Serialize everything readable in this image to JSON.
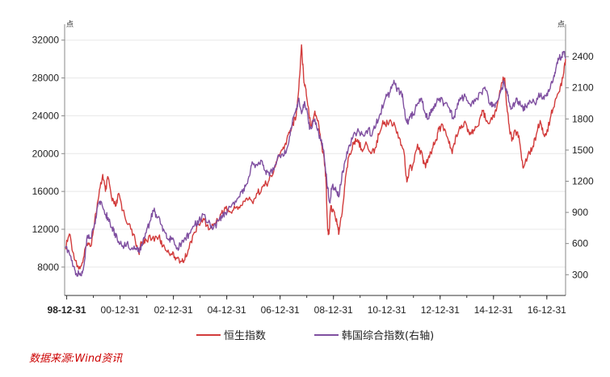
{
  "chart_data": {
    "type": "line",
    "title": "",
    "left_unit": "点",
    "right_unit": "点",
    "x_ticks": [
      "98-12-31",
      "00-12-31",
      "02-12-31",
      "04-12-31",
      "06-12-31",
      "08-12-31",
      "10-12-31",
      "12-12-31",
      "14-12-31",
      "16-12-31"
    ],
    "x_range": [
      1998.92,
      2017.7
    ],
    "y_left": {
      "ticks": [
        8000,
        12000,
        16000,
        20000,
        24000,
        28000,
        32000
      ],
      "lim": [
        5000,
        33000
      ]
    },
    "y_right": {
      "ticks": [
        300,
        600,
        900,
        1200,
        1500,
        1800,
        2100,
        2400
      ],
      "lim": [
        100,
        2650
      ]
    },
    "series": [
      {
        "name": "恒生指数",
        "axis": "left",
        "color": "#d23b3b",
        "points": [
          [
            1998.95,
            10000
          ],
          [
            1999.1,
            11500
          ],
          [
            1999.25,
            9500
          ],
          [
            1999.45,
            7800
          ],
          [
            1999.6,
            8500
          ],
          [
            1999.75,
            10500
          ],
          [
            1999.9,
            10200
          ],
          [
            2000.05,
            13000
          ],
          [
            2000.2,
            15500
          ],
          [
            2000.35,
            17800
          ],
          [
            2000.45,
            16000
          ],
          [
            2000.55,
            17500
          ],
          [
            2000.7,
            15000
          ],
          [
            2000.85,
            14500
          ],
          [
            2000.95,
            15800
          ],
          [
            2001.1,
            14000
          ],
          [
            2001.3,
            12500
          ],
          [
            2001.5,
            11500
          ],
          [
            2001.7,
            9500
          ],
          [
            2001.8,
            10500
          ],
          [
            2001.95,
            11000
          ],
          [
            2002.2,
            11000
          ],
          [
            2002.45,
            11200
          ],
          [
            2002.6,
            10200
          ],
          [
            2002.8,
            9800
          ],
          [
            2002.95,
            9300
          ],
          [
            2003.1,
            9000
          ],
          [
            2003.3,
            8600
          ],
          [
            2003.4,
            8700
          ],
          [
            2003.55,
            9800
          ],
          [
            2003.75,
            11500
          ],
          [
            2003.95,
            12500
          ],
          [
            2004.15,
            13000
          ],
          [
            2004.35,
            12000
          ],
          [
            2004.55,
            12600
          ],
          [
            2004.8,
            13700
          ],
          [
            2004.95,
            14200
          ],
          [
            2005.15,
            13800
          ],
          [
            2005.35,
            14300
          ],
          [
            2005.55,
            14500
          ],
          [
            2005.75,
            15300
          ],
          [
            2005.95,
            14900
          ],
          [
            2006.15,
            15800
          ],
          [
            2006.35,
            16500
          ],
          [
            2006.55,
            17000
          ],
          [
            2006.75,
            18000
          ],
          [
            2006.95,
            19900
          ],
          [
            2007.15,
            20500
          ],
          [
            2007.3,
            22000
          ],
          [
            2007.45,
            23000
          ],
          [
            2007.6,
            24000
          ],
          [
            2007.7,
            27000
          ],
          [
            2007.8,
            31500
          ],
          [
            2007.88,
            28000
          ],
          [
            2007.95,
            27000
          ],
          [
            2008.05,
            25000
          ],
          [
            2008.15,
            23000
          ],
          [
            2008.3,
            24500
          ],
          [
            2008.45,
            23000
          ],
          [
            2008.55,
            21000
          ],
          [
            2008.65,
            19500
          ],
          [
            2008.72,
            17000
          ],
          [
            2008.78,
            12000
          ],
          [
            2008.83,
            11500
          ],
          [
            2008.9,
            14500
          ],
          [
            2008.97,
            14000
          ],
          [
            2009.05,
            13500
          ],
          [
            2009.15,
            12500
          ],
          [
            2009.2,
            11500
          ],
          [
            2009.35,
            14500
          ],
          [
            2009.45,
            17500
          ],
          [
            2009.6,
            20000
          ],
          [
            2009.75,
            21000
          ],
          [
            2009.9,
            21500
          ],
          [
            2010.05,
            20500
          ],
          [
            2010.25,
            21000
          ],
          [
            2010.4,
            20000
          ],
          [
            2010.55,
            20500
          ],
          [
            2010.7,
            22000
          ],
          [
            2010.85,
            23500
          ],
          [
            2010.95,
            23000
          ],
          [
            2011.1,
            23500
          ],
          [
            2011.3,
            23000
          ],
          [
            2011.5,
            21500
          ],
          [
            2011.65,
            20000
          ],
          [
            2011.75,
            17000
          ],
          [
            2011.85,
            18500
          ],
          [
            2011.95,
            18500
          ],
          [
            2012.15,
            21000
          ],
          [
            2012.35,
            19500
          ],
          [
            2012.45,
            18500
          ],
          [
            2012.55,
            19500
          ],
          [
            2012.7,
            20500
          ],
          [
            2012.85,
            21500
          ],
          [
            2012.95,
            22600
          ],
          [
            2013.1,
            23000
          ],
          [
            2013.3,
            21500
          ],
          [
            2013.45,
            20000
          ],
          [
            2013.6,
            22000
          ],
          [
            2013.8,
            23000
          ],
          [
            2013.95,
            23300
          ],
          [
            2014.1,
            22000
          ],
          [
            2014.25,
            22500
          ],
          [
            2014.45,
            23000
          ],
          [
            2014.6,
            24500
          ],
          [
            2014.75,
            23500
          ],
          [
            2014.95,
            23600
          ],
          [
            2015.1,
            24500
          ],
          [
            2015.3,
            27500
          ],
          [
            2015.42,
            28000
          ],
          [
            2015.5,
            25000
          ],
          [
            2015.6,
            22500
          ],
          [
            2015.7,
            21500
          ],
          [
            2015.8,
            22500
          ],
          [
            2015.95,
            21900
          ],
          [
            2016.05,
            19500
          ],
          [
            2016.12,
            18500
          ],
          [
            2016.3,
            20000
          ],
          [
            2016.45,
            20500
          ],
          [
            2016.6,
            22000
          ],
          [
            2016.75,
            23500
          ],
          [
            2016.88,
            22000
          ],
          [
            2016.98,
            22000
          ],
          [
            2017.15,
            24000
          ],
          [
            2017.3,
            25500
          ],
          [
            2017.45,
            26500
          ],
          [
            2017.6,
            28000
          ],
          [
            2017.7,
            30000
          ]
        ]
      },
      {
        "name": "韩国综合指数(右轴)",
        "axis": "right",
        "color": "#7f4fa0",
        "points": [
          [
            1998.95,
            560
          ],
          [
            1999.1,
            500
          ],
          [
            1999.25,
            380
          ],
          [
            1999.35,
            300
          ],
          [
            1999.45,
            310
          ],
          [
            1999.55,
            290
          ],
          [
            1999.65,
            400
          ],
          [
            1999.75,
            650
          ],
          [
            1999.9,
            650
          ],
          [
            2000.05,
            800
          ],
          [
            2000.15,
            950
          ],
          [
            2000.3,
            1000
          ],
          [
            2000.45,
            880
          ],
          [
            2000.55,
            850
          ],
          [
            2000.7,
            750
          ],
          [
            2000.8,
            700
          ],
          [
            2000.95,
            620
          ],
          [
            2001.1,
            580
          ],
          [
            2001.25,
            600
          ],
          [
            2001.45,
            560
          ],
          [
            2001.6,
            540
          ],
          [
            2001.7,
            520
          ],
          [
            2001.85,
            600
          ],
          [
            2001.95,
            700
          ],
          [
            2002.1,
            800
          ],
          [
            2002.25,
            920
          ],
          [
            2002.35,
            880
          ],
          [
            2002.55,
            780
          ],
          [
            2002.7,
            700
          ],
          [
            2002.85,
            650
          ],
          [
            2002.95,
            640
          ],
          [
            2003.15,
            560
          ],
          [
            2003.3,
            600
          ],
          [
            2003.45,
            650
          ],
          [
            2003.6,
            700
          ],
          [
            2003.8,
            780
          ],
          [
            2003.95,
            820
          ],
          [
            2004.15,
            880
          ],
          [
            2004.3,
            800
          ],
          [
            2004.5,
            750
          ],
          [
            2004.7,
            820
          ],
          [
            2004.85,
            870
          ],
          [
            2004.95,
            900
          ],
          [
            2005.15,
            950
          ],
          [
            2005.35,
            1000
          ],
          [
            2005.55,
            1100
          ],
          [
            2005.7,
            1150
          ],
          [
            2005.85,
            1250
          ],
          [
            2005.97,
            1380
          ],
          [
            2006.15,
            1350
          ],
          [
            2006.3,
            1400
          ],
          [
            2006.45,
            1300
          ],
          [
            2006.6,
            1250
          ],
          [
            2006.8,
            1350
          ],
          [
            2006.95,
            1440
          ],
          [
            2007.15,
            1450
          ],
          [
            2007.3,
            1550
          ],
          [
            2007.45,
            1750
          ],
          [
            2007.6,
            1900
          ],
          [
            2007.7,
            2000
          ],
          [
            2007.8,
            1850
          ],
          [
            2007.9,
            1950
          ],
          [
            2008.0,
            1900
          ],
          [
            2008.1,
            1700
          ],
          [
            2008.3,
            1800
          ],
          [
            2008.45,
            1650
          ],
          [
            2008.55,
            1600
          ],
          [
            2008.65,
            1450
          ],
          [
            2008.75,
            1200
          ],
          [
            2008.85,
            1000
          ],
          [
            2008.95,
            1150
          ],
          [
            2009.1,
            1100
          ],
          [
            2009.2,
            1050
          ],
          [
            2009.35,
            1300
          ],
          [
            2009.45,
            1400
          ],
          [
            2009.6,
            1550
          ],
          [
            2009.75,
            1650
          ],
          [
            2009.95,
            1680
          ],
          [
            2010.1,
            1650
          ],
          [
            2010.3,
            1700
          ],
          [
            2010.45,
            1650
          ],
          [
            2010.6,
            1750
          ],
          [
            2010.75,
            1850
          ],
          [
            2010.95,
            2000
          ],
          [
            2011.1,
            2050
          ],
          [
            2011.25,
            2150
          ],
          [
            2011.35,
            2100
          ],
          [
            2011.5,
            2050
          ],
          [
            2011.6,
            2000
          ],
          [
            2011.7,
            1800
          ],
          [
            2011.8,
            1750
          ],
          [
            2011.9,
            1850
          ],
          [
            2011.97,
            1830
          ],
          [
            2012.15,
            1950
          ],
          [
            2012.3,
            2000
          ],
          [
            2012.45,
            1850
          ],
          [
            2012.55,
            1800
          ],
          [
            2012.7,
            1900
          ],
          [
            2012.85,
            1950
          ],
          [
            2012.97,
            2000
          ],
          [
            2013.15,
            1950
          ],
          [
            2013.35,
            1900
          ],
          [
            2013.5,
            1800
          ],
          [
            2013.65,
            1950
          ],
          [
            2013.8,
            2000
          ],
          [
            2013.97,
            2010
          ],
          [
            2014.15,
            1920
          ],
          [
            2014.35,
            2000
          ],
          [
            2014.55,
            2050
          ],
          [
            2014.7,
            2080
          ],
          [
            2014.85,
            1950
          ],
          [
            2014.97,
            1920
          ],
          [
            2015.1,
            1950
          ],
          [
            2015.3,
            2100
          ],
          [
            2015.4,
            2150
          ],
          [
            2015.5,
            2050
          ],
          [
            2015.6,
            1950
          ],
          [
            2015.7,
            1900
          ],
          [
            2015.85,
            2000
          ],
          [
            2015.97,
            1960
          ],
          [
            2016.1,
            1900
          ],
          [
            2016.2,
            1920
          ],
          [
            2016.35,
            1980
          ],
          [
            2016.55,
            1950
          ],
          [
            2016.7,
            2050
          ],
          [
            2016.85,
            2000
          ],
          [
            2016.98,
            2020
          ],
          [
            2017.1,
            2080
          ],
          [
            2017.25,
            2200
          ],
          [
            2017.35,
            2300
          ],
          [
            2017.45,
            2380
          ],
          [
            2017.55,
            2400
          ],
          [
            2017.62,
            2450
          ],
          [
            2017.7,
            2380
          ]
        ]
      }
    ]
  },
  "legend": {
    "items": [
      "恒生指数",
      "韩国综合指数(右轴)"
    ]
  },
  "source": "数据来源:Wind资讯",
  "colors": {
    "source_text": "#cc0000",
    "axis": "#888888"
  }
}
